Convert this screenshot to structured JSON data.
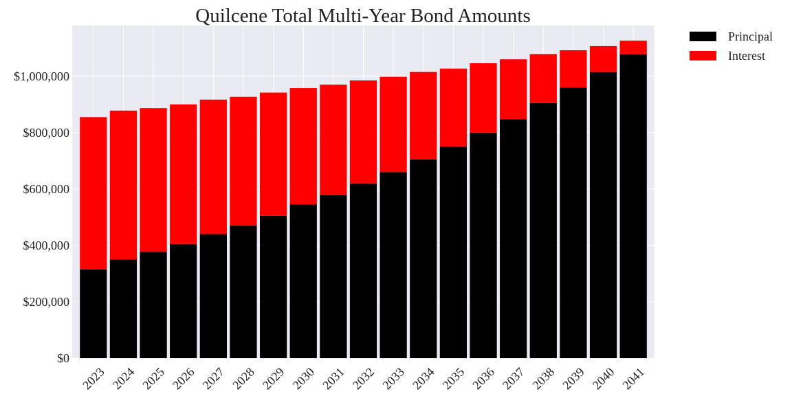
{
  "chart_data": {
    "type": "bar",
    "stacked": true,
    "title": "Quilcene Total Multi-Year Bond Amounts",
    "xlabel": "",
    "ylabel": "",
    "categories": [
      "2023",
      "2024",
      "2025",
      "2026",
      "2027",
      "2028",
      "2029",
      "2030",
      "2031",
      "2032",
      "2033",
      "2034",
      "2035",
      "2036",
      "2037",
      "2038",
      "2039",
      "2040",
      "2041"
    ],
    "series": [
      {
        "name": "Principal",
        "color": "#000000",
        "values": [
          315000,
          350000,
          377000,
          405000,
          440000,
          470000,
          505000,
          545000,
          578000,
          620000,
          660000,
          705000,
          750000,
          800000,
          848000,
          905000,
          960000,
          1015000,
          1078000
        ]
      },
      {
        "name": "Interest",
        "color": "#ff0000",
        "values": [
          540000,
          528000,
          510000,
          495000,
          477000,
          457000,
          437000,
          413000,
          392000,
          365000,
          338000,
          310000,
          277000,
          246000,
          212000,
          173000,
          132000,
          92000,
          48000
        ]
      }
    ],
    "ylim": [
      0,
      1180000
    ],
    "yticks": [
      0,
      200000,
      400000,
      600000,
      800000,
      1000000
    ],
    "ytick_labels": [
      "$0",
      "$200,000",
      "$400,000",
      "$600,000",
      "$800,000",
      "$1,000,000"
    ],
    "grid": true,
    "legend_position": "outside-top-right",
    "background_color": "#e9eaf2",
    "grid_color": "#ffffff"
  }
}
